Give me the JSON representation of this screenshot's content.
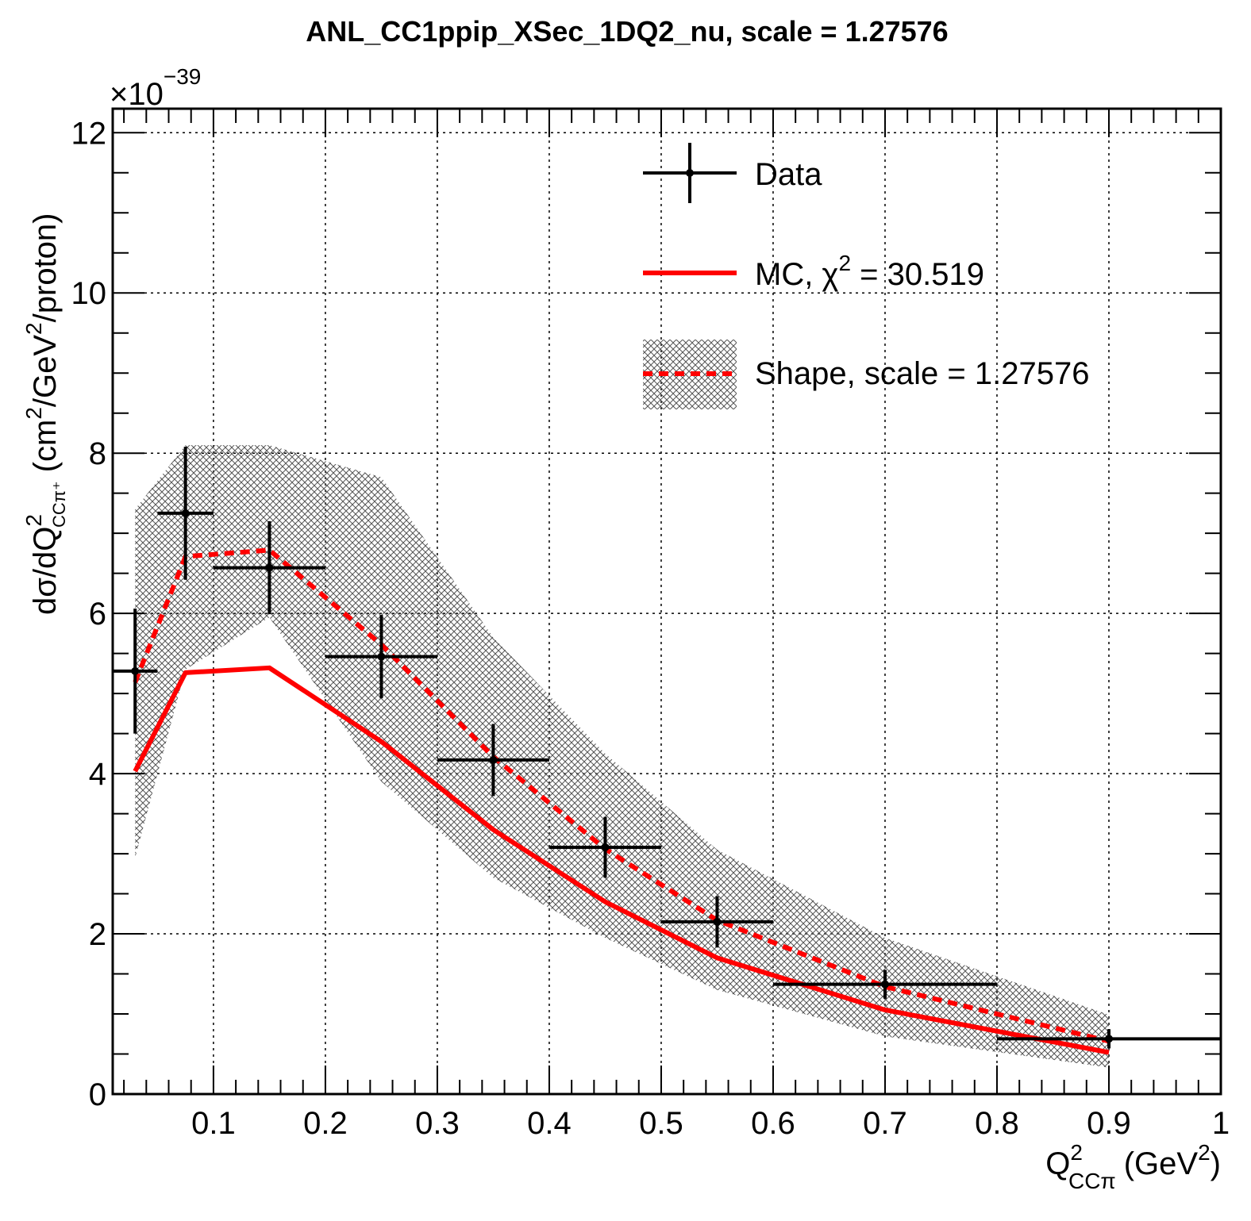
{
  "chart_data": {
    "type": "scatter",
    "title": "ANL_CC1ppip_XSec_1DQ2_nu, scale = 1.27576",
    "exponent_label": "×10",
    "exponent_power": "−39",
    "xlabel": "Q",
    "xlabel_sup": "2",
    "xlabel_sub": "CCπ",
    "xlabel_units": "(GeV",
    "xlabel_units_sup": "2",
    "xlabel_units_close": ")",
    "ylabel_prefix": "dσ/dQ",
    "ylabel_sup": "2",
    "ylabel_sub": "CCπ⁺",
    "ylabel_units_a": " (cm",
    "ylabel_units_sup": "2",
    "ylabel_units_b": "/GeV",
    "ylabel_units_sup2": "2",
    "ylabel_units_c": "/proton)",
    "xlim": [
      0.01,
      1.0
    ],
    "ylim": [
      0,
      12.3
    ],
    "x_ticks": [
      0.1,
      0.2,
      0.3,
      0.4,
      0.5,
      0.6,
      0.7,
      0.8,
      0.9,
      1.0
    ],
    "x_tick_labels": [
      "0.1",
      "0.2",
      "0.3",
      "0.4",
      "0.5",
      "0.6",
      "0.7",
      "0.8",
      "0.9",
      "1"
    ],
    "y_ticks": [
      0,
      2,
      4,
      6,
      8,
      10,
      12
    ],
    "y_tick_labels": [
      "0",
      "2",
      "4",
      "6",
      "8",
      "10",
      "12"
    ],
    "grid": true,
    "legend_position": "top-right",
    "series": [
      {
        "name": "Data",
        "kind": "points",
        "color": "#000000",
        "x": [
          0.03,
          0.075,
          0.15,
          0.25,
          0.35,
          0.45,
          0.55,
          0.7,
          0.9
        ],
        "xerr_low": [
          0.02,
          0.025,
          0.05,
          0.05,
          0.05,
          0.05,
          0.05,
          0.1,
          0.1
        ],
        "xerr_high": [
          0.02,
          0.025,
          0.05,
          0.05,
          0.05,
          0.05,
          0.05,
          0.1,
          0.1
        ],
        "y": [
          5.28,
          7.25,
          6.57,
          5.46,
          4.17,
          3.08,
          2.15,
          1.37,
          0.69
        ],
        "yerr": [
          0.78,
          0.83,
          0.58,
          0.52,
          0.45,
          0.38,
          0.32,
          0.18,
          0.12
        ]
      },
      {
        "name": "MC, χ² = 30.519",
        "legend_text": "MC, χ",
        "legend_sup": "2",
        "legend_rest": " = 30.519",
        "kind": "line",
        "color": "#ff0000",
        "x": [
          0.03,
          0.075,
          0.15,
          0.25,
          0.35,
          0.45,
          0.55,
          0.7,
          0.9
        ],
        "y": [
          4.03,
          5.26,
          5.32,
          4.4,
          3.3,
          2.4,
          1.7,
          1.05,
          0.52
        ]
      },
      {
        "name": "Shape, scale = 1.27576",
        "kind": "dashed-line-with-band",
        "color": "#ff0000",
        "band_color": "#555555",
        "x": [
          0.03,
          0.075,
          0.15,
          0.25,
          0.35,
          0.45,
          0.55,
          0.7,
          0.9
        ],
        "y": [
          5.14,
          6.71,
          6.79,
          5.61,
          4.21,
          3.06,
          2.17,
          1.34,
          0.66
        ],
        "band_low": [
          2.95,
          5.3,
          5.95,
          3.9,
          2.7,
          1.95,
          1.3,
          0.72,
          0.33
        ],
        "band_high": [
          7.3,
          8.1,
          8.1,
          7.7,
          5.7,
          4.25,
          3.05,
          1.95,
          0.99
        ]
      }
    ]
  }
}
